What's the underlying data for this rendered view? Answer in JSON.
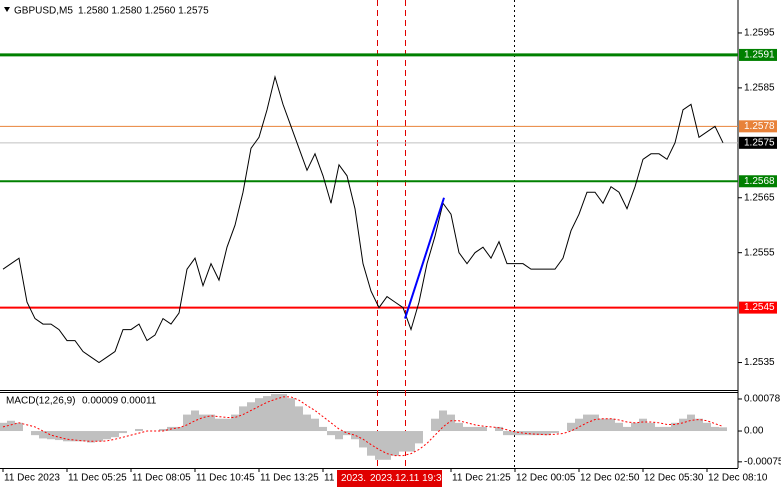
{
  "chart_data": [
    {
      "type": "line",
      "title": "GBPUSD,M5",
      "quote": "1.2580 1.2580 1.2560 1.2575",
      "color": "#000000",
      "categories": [
        "11 Dec 2023",
        null,
        null,
        null,
        null,
        null,
        null,
        null,
        "11 Dec 05:25",
        null,
        null,
        null,
        null,
        null,
        null,
        null,
        "11 Dec 08:05",
        null,
        null,
        null,
        null,
        null,
        null,
        null,
        "11 Dec 10:45",
        null,
        null,
        null,
        null,
        null,
        null,
        null,
        "11 Dec 13:25",
        null,
        null,
        null,
        null,
        null,
        null,
        null,
        "11",
        null,
        null,
        null,
        null,
        null,
        null,
        null,
        null,
        null,
        null,
        null,
        null,
        null,
        null,
        null,
        "11 Dec 21:25",
        null,
        null,
        null,
        null,
        null,
        null,
        null,
        "12 Dec 00:05",
        null,
        null,
        null,
        null,
        null,
        null,
        null,
        "12 Dec 02:50",
        null,
        null,
        null,
        null,
        null,
        null,
        null,
        "12 Dec 05:30",
        null,
        null,
        null,
        null,
        null,
        null,
        null,
        "12 Dec 08:10",
        null,
        null
      ],
      "values": [
        1.2552,
        1.2553,
        1.2554,
        1.2546,
        1.2543,
        1.2542,
        1.2542,
        1.2541,
        1.2539,
        1.2539,
        1.2537,
        1.2536,
        1.2535,
        1.2536,
        1.2537,
        1.2541,
        1.2541,
        1.2542,
        1.2539,
        1.254,
        1.2543,
        1.2542,
        1.2544,
        1.2552,
        1.2554,
        1.2549,
        1.2553,
        1.255,
        1.2556,
        1.256,
        1.2566,
        1.2574,
        1.2576,
        1.2581,
        1.2587,
        1.2582,
        1.2578,
        1.2574,
        1.257,
        1.2573,
        1.2569,
        1.2564,
        1.2571,
        1.2569,
        1.2563,
        1.2553,
        1.2548,
        1.2545,
        1.2547,
        1.2546,
        1.2545,
        1.2541,
        1.2546,
        1.2553,
        1.2558,
        1.2564,
        1.2562,
        1.2555,
        1.2553,
        1.2555,
        1.2556,
        1.2554,
        1.2557,
        1.2553,
        1.2553,
        1.2553,
        1.2552,
        1.2552,
        1.2552,
        1.2552,
        1.2554,
        1.2559,
        1.2562,
        1.2566,
        1.2566,
        1.2564,
        1.2567,
        1.2566,
        1.2563,
        1.2567,
        1.2572,
        1.2573,
        1.2573,
        1.2572,
        1.2575,
        1.2581,
        1.2582,
        1.2576,
        1.2577,
        1.2578,
        1.2575
      ],
      "ylim": [
        1.253,
        1.2601
      ],
      "yticks": [
        1.2595,
        1.2585,
        1.2565,
        1.2555,
        1.2535
      ],
      "levels": [
        {
          "value": 1.2591,
          "color": "#008000"
        },
        {
          "value": 1.2578,
          "color": "#e8823a"
        },
        {
          "value": 1.2575,
          "color": "#000000"
        },
        {
          "value": 1.2568,
          "color": "#008000"
        },
        {
          "value": 1.2545,
          "color": "#ff0000"
        }
      ],
      "trade_line": {
        "values": [
          1.2543,
          1.2565
        ],
        "color": "#0000ff"
      },
      "marker_labels": [
        "2023.",
        "2023.12.11 19:30"
      ]
    },
    {
      "type": "macd",
      "title": "MACD(12,26,9)",
      "readout": "0.00009 0.00011",
      "ylim": [
        -0.0009,
        0.00095
      ],
      "yticks": [
        0.00078,
        {
          "value": 0,
          "label": "0.00"
        },
        -0.00075
      ],
      "series": [
        {
          "name": "MACD",
          "color": "#c0c0c0",
          "values": [
            0.0002,
            0.00025,
            0.0002,
            0,
            -0.0001,
            -0.00018,
            -0.0002,
            -0.00022,
            -0.00025,
            -0.00025,
            -0.00025,
            -0.00028,
            -0.00025,
            -0.0002,
            -0.00015,
            -5e-05,
            0,
            5e-05,
            0,
            0,
            5e-05,
            0.0001,
            0.0001,
            0.0004,
            0.0005,
            0.0004,
            0.0004,
            0.0003,
            0.0003,
            0.0004,
            0.0006,
            0.0007,
            0.0008,
            0.00085,
            0.0009,
            0.0009,
            0.0008,
            0.0006,
            0.0004,
            0.0003,
            0.0001,
            -0.0001,
            -0.0002,
            -0.0001,
            -0.0002,
            -0.0004,
            -0.0006,
            -0.0007,
            -0.0007,
            -0.0006,
            -0.0005,
            -0.0005,
            -0.0003,
            0,
            0.0003,
            0.0005,
            0.0004,
            0.0002,
            0.0001,
            0.0001,
            0.0001,
            0,
            0.0001,
            -0.0001,
            -0.0001,
            -0.0001,
            -0.0001,
            -0.0001,
            -0.0001,
            -5e-05,
            0,
            0.0002,
            0.0003,
            0.0004,
            0.0004,
            0.0003,
            0.0003,
            0.0002,
            0.0001,
            0.0002,
            0.0003,
            0.0002,
            0.0001,
            0.0001,
            0.0002,
            0.0003,
            0.0004,
            0.0003,
            0.0002,
            0.0001,
            9e-05
          ]
        },
        {
          "name": "Signal",
          "color": "#ff0000",
          "values": [
            0.0001,
            0.00015,
            0.0002,
            0.00015,
            0.0001,
            0,
            -0.0001,
            -0.00015,
            -0.0002,
            -0.00022,
            -0.00024,
            -0.00025,
            -0.00025,
            -0.00024,
            -0.0002,
            -0.00015,
            -0.0001,
            -5e-05,
            0,
            0,
            0,
            5e-05,
            8e-05,
            0.00015,
            0.00025,
            0.00033,
            0.00037,
            0.00035,
            0.00033,
            0.00033,
            0.0004,
            0.0005,
            0.0006,
            0.0007,
            0.00077,
            0.00083,
            0.00083,
            0.00075,
            0.00062,
            0.0005,
            0.00035,
            0.0002,
            5e-05,
            -5e-05,
            -0.0001,
            -0.0002,
            -0.00033,
            -0.00045,
            -0.00055,
            -0.0006,
            -0.0006,
            -0.00055,
            -0.00045,
            -0.0003,
            -0.0001,
            0.0001,
            0.00025,
            0.00025,
            0.0002,
            0.00015,
            0.00012,
            0.0001,
            8e-05,
            3e-05,
            -2e-05,
            -5e-05,
            -7e-05,
            -8e-05,
            -9e-05,
            -8e-05,
            -6e-05,
            0,
            0.0001,
            0.0002,
            0.00028,
            0.0003,
            0.0003,
            0.00027,
            0.00022,
            0.0002,
            0.00022,
            0.00022,
            0.0002,
            0.00016,
            0.00016,
            0.0002,
            0.00026,
            0.00028,
            0.00025,
            0.00018,
            0.00011
          ]
        }
      ]
    }
  ]
}
